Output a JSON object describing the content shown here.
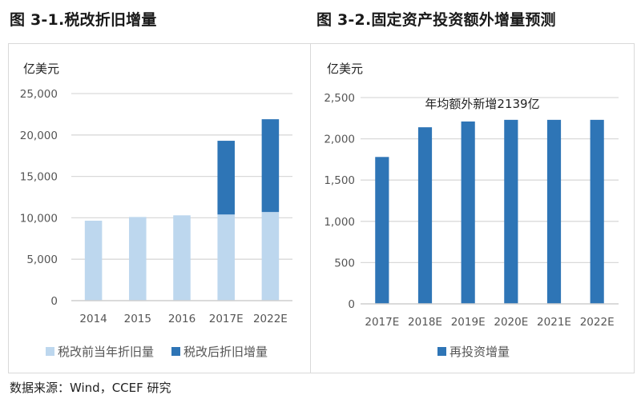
{
  "source": "数据来源：Wind，CCEF 研究",
  "chart_data": [
    {
      "type": "bar",
      "stacked": true,
      "title": "图 3-1.税改折旧增量",
      "unit": "亿美元",
      "xlabel": "",
      "ylabel": "亿美元",
      "categories": [
        "2014",
        "2015",
        "2016",
        "2017E",
        "2022E"
      ],
      "series": [
        {
          "name": "税改前当年折旧量",
          "color": "#bdd7ee",
          "values": [
            9650,
            10100,
            10300,
            10400,
            10700
          ]
        },
        {
          "name": "税改后折旧增量",
          "color": "#2e75b6",
          "values": [
            0,
            0,
            0,
            8900,
            11200
          ]
        }
      ],
      "ylim": [
        0,
        25000
      ],
      "yticks": [
        0,
        5000,
        10000,
        15000,
        20000,
        25000
      ],
      "ytick_labels": [
        "0",
        "5,000",
        "10,000",
        "15,000",
        "20,000",
        "25,000"
      ],
      "grid": true,
      "legend_position": "bottom"
    },
    {
      "type": "bar",
      "title": "图 3-2.固定资产投资额外增量预测",
      "unit": "亿美元",
      "xlabel": "",
      "ylabel": "亿美元",
      "categories": [
        "2017E",
        "2018E",
        "2019E",
        "2020E",
        "2021E",
        "2022E"
      ],
      "series": [
        {
          "name": "再投资增量",
          "color": "#2e75b6",
          "values": [
            1780,
            2140,
            2210,
            2230,
            2230,
            2230
          ]
        }
      ],
      "ylim": [
        0,
        2500
      ],
      "yticks": [
        0,
        500,
        1000,
        1500,
        2000,
        2500
      ],
      "ytick_labels": [
        "0",
        "500",
        "1,000",
        "1,500",
        "2,000",
        "2,500"
      ],
      "annotations": [
        "年均额外新增2139亿"
      ],
      "grid": true,
      "legend_position": "bottom"
    }
  ]
}
